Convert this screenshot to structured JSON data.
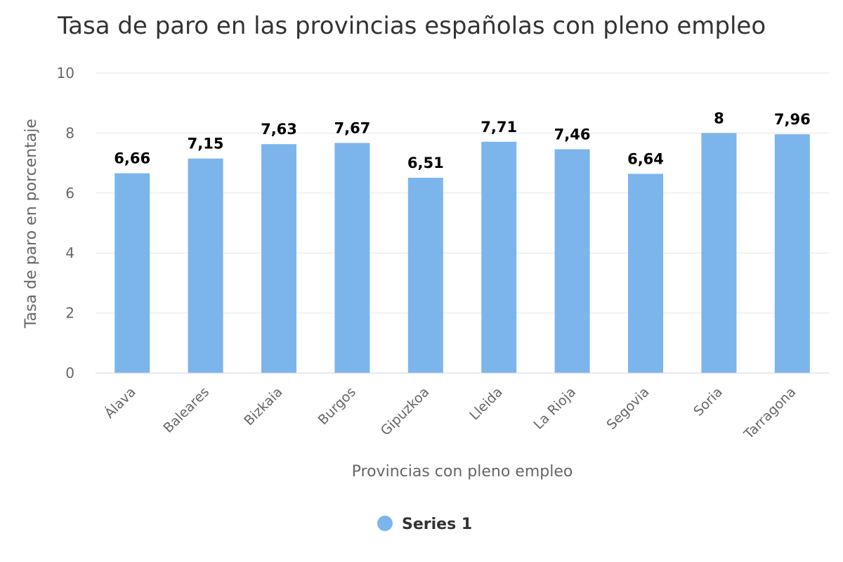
{
  "chart_data": {
    "type": "bar",
    "title": "Tasa de paro en las provincias españolas con pleno empleo",
    "xlabel": "Provincias con pleno empleo",
    "ylabel": "Tasa de paro en porcentaje",
    "ylim": [
      0,
      10
    ],
    "yticks": [
      0,
      2,
      4,
      6,
      8,
      10
    ],
    "categories": [
      "Álava",
      "Baleares",
      "Bizkaia",
      "Burgos",
      "Gipuzkoa",
      "Lleida",
      "La Rioja",
      "Segovia",
      "Soria",
      "Tarragona"
    ],
    "series": [
      {
        "name": "Series 1",
        "values": [
          6.66,
          7.15,
          7.63,
          7.67,
          6.51,
          7.71,
          7.46,
          6.64,
          8,
          7.96
        ],
        "labels": [
          "6,66",
          "7,15",
          "7,63",
          "7,67",
          "6,51",
          "7,71",
          "7,46",
          "6,64",
          "8",
          "7,96"
        ],
        "color": "#7cb5ec"
      }
    ],
    "grid": true,
    "gridColor": "#e6e6e6",
    "legend": "bottom-center"
  }
}
